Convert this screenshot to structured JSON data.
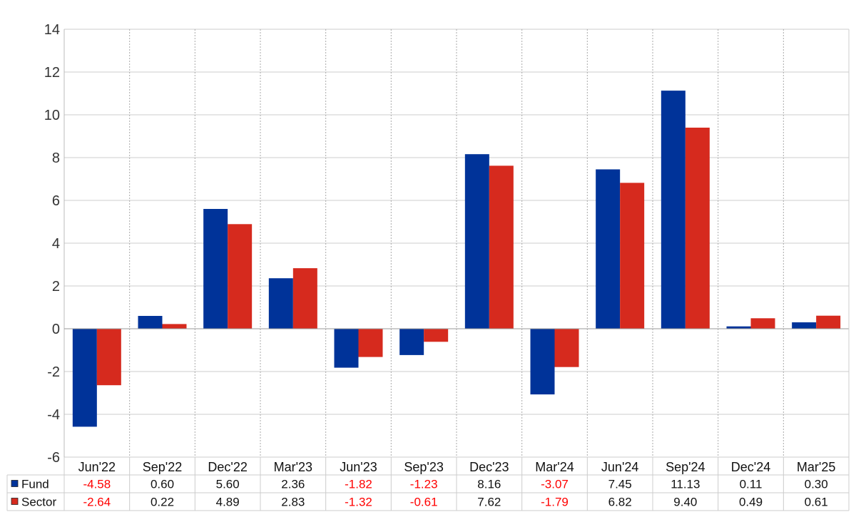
{
  "chart_data": {
    "type": "bar",
    "categories": [
      "Jun'22",
      "Sep'22",
      "Dec'22",
      "Mar'23",
      "Jun'23",
      "Sep'23",
      "Dec'23",
      "Mar'24",
      "Jun'24",
      "Sep'24",
      "Dec'24",
      "Mar'25"
    ],
    "series": [
      {
        "name": "Fund",
        "color": "#003399",
        "values": [
          -4.58,
          0.6,
          5.6,
          2.36,
          -1.82,
          -1.23,
          8.16,
          -3.07,
          7.45,
          11.13,
          0.11,
          0.3
        ],
        "labels": [
          "-4.58",
          "0.60",
          "5.60",
          "2.36",
          "-1.82",
          "-1.23",
          "8.16",
          "-3.07",
          "7.45",
          "11.13",
          "0.11",
          "0.30"
        ]
      },
      {
        "name": "Sector",
        "color": "#d62a1e",
        "values": [
          -2.64,
          0.22,
          4.89,
          2.83,
          -1.32,
          -0.61,
          7.62,
          -1.79,
          6.82,
          9.4,
          0.49,
          0.61
        ],
        "labels": [
          "-2.64",
          "0.22",
          "4.89",
          "2.83",
          "-1.32",
          "-0.61",
          "7.62",
          "-1.79",
          "6.82",
          "9.40",
          "0.49",
          "0.61"
        ]
      }
    ],
    "ylim": [
      -6,
      14
    ],
    "yticks": [
      "-6",
      "-4",
      "-2",
      "0",
      "2",
      "4",
      "6",
      "8",
      "10",
      "12",
      "14"
    ],
    "title": "",
    "xlabel": "",
    "ylabel": "",
    "grid": true,
    "legend": "data-table-left",
    "negative_value_color": "#ff0000"
  }
}
